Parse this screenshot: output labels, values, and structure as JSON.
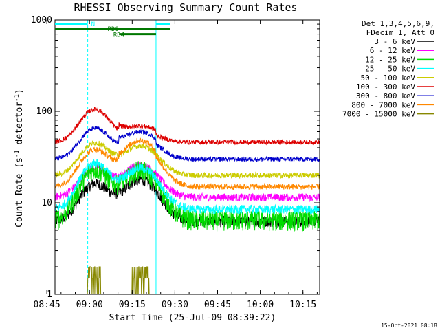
{
  "chart_data": {
    "type": "line",
    "title": "RHESSI Observing Summary Count Rates",
    "xlabel": "Start Time (25-Jul-09 08:39:22)",
    "ylabel": "Count Rate (s⁻¹ detector⁻¹)",
    "ylabel_parts": [
      "Count Rate (s",
      "-1",
      " detector",
      "-1",
      ")"
    ],
    "y_scale": "log",
    "ylim": [
      1,
      1000
    ],
    "xlim_minutes": [
      8.5,
      101.5
    ],
    "x_ticks": [
      {
        "label": "08:45",
        "minute": 45
      },
      {
        "label": "09:00",
        "minute": 60
      },
      {
        "label": "09:15",
        "minute": 75
      },
      {
        "label": "09:30",
        "minute": 90
      },
      {
        "label": "09:45",
        "minute": 105
      },
      {
        "label": "10:00",
        "minute": 120
      },
      {
        "label": "10:15",
        "minute": 135
      }
    ],
    "y_ticks": [
      {
        "label": "1",
        "value": 1
      },
      {
        "label": "10",
        "value": 10
      },
      {
        "label": "100",
        "value": 100
      },
      {
        "label": "1000",
        "value": 1000
      }
    ],
    "legend_header": [
      "Det 1,3,4,5,6,9,",
      "FDecim 1, Att 0"
    ],
    "legend_position": "right",
    "series": [
      {
        "name": "3 - 6 keV",
        "color": "#000000",
        "quiet": 6.3,
        "peak1": 16,
        "peak2": 18,
        "noise": 0.1
      },
      {
        "name": "6 - 12 keV",
        "color": "#ff00ff",
        "quiet": 11.5,
        "peak1": 24,
        "peak2": 26,
        "noise": 0.07
      },
      {
        "name": "12 - 25 keV",
        "color": "#00dd00",
        "quiet": 6.5,
        "peak1": 23,
        "peak2": 23,
        "noise": 0.18
      },
      {
        "name": "25 - 50 keV",
        "color": "#00ffff",
        "quiet": 8.5,
        "peak1": 27,
        "peak2": 24,
        "noise": 0.08
      },
      {
        "name": "50 - 100 keV",
        "color": "#cccc00",
        "quiet": 20,
        "peak1": 45,
        "peak2": 42,
        "noise": 0.05
      },
      {
        "name": "100 - 300 keV",
        "color": "#dd0000",
        "quiet": 46,
        "peak1": 105,
        "peak2": 60,
        "noise": 0.04
      },
      {
        "name": "300 - 800 keV",
        "color": "#0000cc",
        "quiet": 30,
        "peak1": 65,
        "peak2": 52,
        "noise": 0.04
      },
      {
        "name": "800 - 7000 keV",
        "color": "#ff8800",
        "quiet": 15,
        "peak1": 38,
        "peak2": 42,
        "noise": 0.05
      },
      {
        "name": "7000 - 15000 keV",
        "color": "#888800",
        "quiet": 1,
        "peak1": 1,
        "peak2": 1,
        "noise": 0
      }
    ],
    "flag_bars": [
      {
        "label": "N",
        "color": "#00ffff",
        "segments": [
          [
            8.5,
            20
          ],
          [
            44,
            49
          ]
        ],
        "value": 900
      },
      {
        "label": "RD0",
        "color": "#007700",
        "segments": [
          [
            8.5,
            49
          ]
        ],
        "value": 800
      },
      {
        "label": "RD4",
        "color": "#007700",
        "segments": [
          [
            31,
            44
          ]
        ],
        "value": 700
      }
    ],
    "saa_lines_minutes": [
      8.5,
      20,
      101.5
    ],
    "night_line_minute": 44,
    "grid": false
  },
  "footer": {
    "timestamp": "15-Oct-2021 08:18"
  }
}
